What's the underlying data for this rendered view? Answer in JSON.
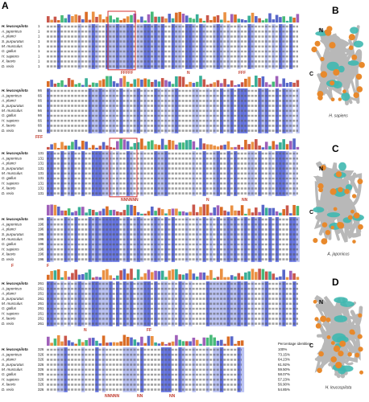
{
  "panels": {
    "a": "A",
    "b": "B",
    "c": "C",
    "d": "D"
  },
  "alignment": {
    "species": [
      "H. leucospilota",
      "A. japonicus",
      "A. planci",
      "S. purpuratus",
      "M. musculus",
      "G. gallus",
      "H. sapiens",
      "X. laevis",
      "D. rerio"
    ],
    "blocks": [
      {
        "start": "1",
        "annotations": [
          "FFFFF",
          "N",
          "FFF"
        ]
      },
      {
        "start": "66",
        "annotations": [
          "FFF"
        ]
      },
      {
        "start": "131",
        "annotations": [
          "NNNNNN",
          "N",
          "NN"
        ]
      },
      {
        "start": "196",
        "annotations": [
          "F",
          "F"
        ]
      },
      {
        "start": "261",
        "annotations": [
          "N",
          "FF"
        ]
      },
      {
        "start": "326",
        "annotations": [
          "NNNNN",
          "NN",
          "NN"
        ]
      }
    ],
    "identity_header": "Percentage identities",
    "identities": [
      "100%",
      "73.15%",
      "64.23%",
      "61.92%",
      "59.50%",
      "58.07%",
      "57.23%",
      "56.90%",
      "54.85%"
    ]
  },
  "structures": [
    {
      "n": "N",
      "c": "C",
      "species": "H. sapiens"
    },
    {
      "n": "N",
      "c": "C",
      "species": "A. japonicus"
    },
    {
      "n": "N",
      "c": "C",
      "species": "H. leucospilota"
    }
  ]
}
